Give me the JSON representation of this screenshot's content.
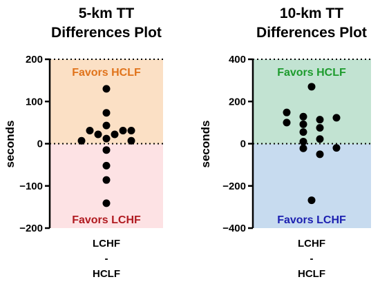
{
  "chart_data": [
    {
      "type": "scatter",
      "title_lines": [
        "5-km TT",
        "Differences Plot"
      ],
      "ylabel": "seconds",
      "ylim": [
        -200,
        200
      ],
      "yticks": [
        -200,
        -100,
        0,
        100,
        200
      ],
      "ytick_labels": [
        "−200",
        "−100",
        "0",
        "100",
        "200"
      ],
      "category_lines": [
        "LCHF",
        "-",
        "HCLF"
      ],
      "upper_region": {
        "label": "Favors HCLF",
        "fill": "#fbe0c5",
        "text_color": "#e0731b"
      },
      "lower_region": {
        "label": "Favors LCHF",
        "fill": "#fde2e4",
        "text_color": "#b01a20"
      },
      "points": [
        {
          "dx": 0,
          "y": 130
        },
        {
          "dx": 0,
          "y": 73
        },
        {
          "dx": 0,
          "y": 43
        },
        {
          "dx": -1,
          "y": 22
        },
        {
          "dx": 1,
          "y": 22
        },
        {
          "dx": -2,
          "y": 31
        },
        {
          "dx": 2,
          "y": 31
        },
        {
          "dx": 3,
          "y": 31
        },
        {
          "dx": -3,
          "y": 7
        },
        {
          "dx": 3,
          "y": 7
        },
        {
          "dx": 0,
          "y": 12
        },
        {
          "dx": 0,
          "y": -15
        },
        {
          "dx": 0,
          "y": -52
        },
        {
          "dx": 0,
          "y": -86
        },
        {
          "dx": 0,
          "y": -141
        }
      ]
    },
    {
      "type": "scatter",
      "title_lines": [
        "10-km TT",
        "Differences Plot"
      ],
      "ylabel": "seconds",
      "ylim": [
        -400,
        400
      ],
      "yticks": [
        -400,
        -200,
        0,
        200,
        400
      ],
      "ytick_labels": [
        "−400",
        "−200",
        "0",
        "200",
        "400"
      ],
      "category_lines": [
        "LCHF",
        "-",
        "HCLF"
      ],
      "upper_region": {
        "label": "Favors HCLF",
        "fill": "#c2e3d2",
        "text_color": "#1d9b2d"
      },
      "lower_region": {
        "label": "Favors LCHF",
        "fill": "#c7dbef",
        "text_color": "#1b1fb0"
      },
      "points": [
        {
          "dx": 0,
          "y": 270
        },
        {
          "dx": -3,
          "y": 148
        },
        {
          "dx": -3,
          "y": 100
        },
        {
          "dx": -1,
          "y": 128
        },
        {
          "dx": 1,
          "y": 114
        },
        {
          "dx": 3,
          "y": 123
        },
        {
          "dx": -1,
          "y": 92
        },
        {
          "dx": 1,
          "y": 75
        },
        {
          "dx": -1,
          "y": 55
        },
        {
          "dx": -1,
          "y": 10
        },
        {
          "dx": 1,
          "y": 22
        },
        {
          "dx": -1,
          "y": -22
        },
        {
          "dx": 3,
          "y": -20
        },
        {
          "dx": 1,
          "y": -50
        },
        {
          "dx": 0,
          "y": -268
        }
      ]
    }
  ]
}
